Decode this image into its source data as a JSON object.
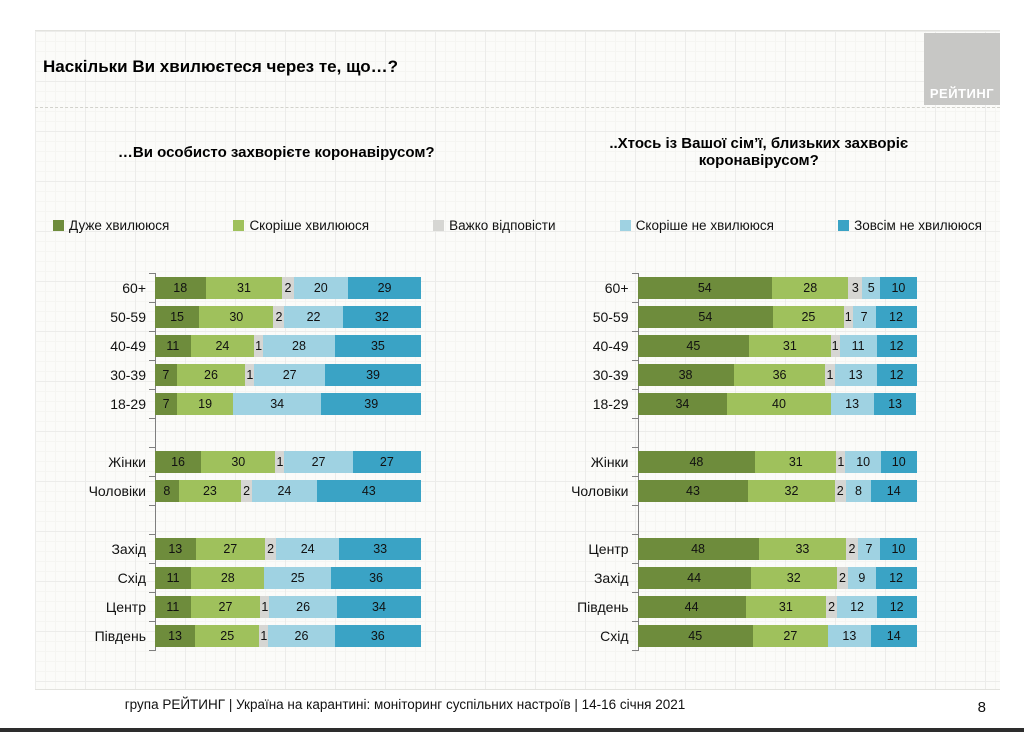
{
  "slide": {
    "title": "Наскільки Ви хвилюєтеся через те, що…?",
    "logo_text": "РЕЙТИНГ",
    "footer": "група РЕЙТИНГ | Україна на карантині: моніторинг суспільних настроїв | 14-16 січня 2021",
    "page_number": "8"
  },
  "legend": [
    {
      "label": "Дуже хвилююся",
      "color": "#6e8c3c"
    },
    {
      "label": "Скоріше хвилююся",
      "color": "#9fc15c"
    },
    {
      "label": "Важко відповісти",
      "color": "#d6d6d3"
    },
    {
      "label": "Скоріше не хвилююся",
      "color": "#9fd2e2"
    },
    {
      "label": "Зовсім не хвилююся",
      "color": "#3aa3c5"
    }
  ],
  "chart_data": [
    {
      "type": "bar",
      "stacked": true,
      "orientation": "horizontal",
      "title": "…Ви особисто захворієте коронавірусом?",
      "series_names": [
        "Дуже хвилююся",
        "Скоріше хвилююся",
        "Важко відповісти",
        "Скоріше не хвилююся",
        "Зовсім не хвилююся"
      ],
      "xlim": [
        0,
        100
      ],
      "units": "percent",
      "groups": [
        {
          "rows": [
            {
              "label": "60+",
              "values": [
                18,
                31,
                2,
                20,
                29
              ]
            },
            {
              "label": "50-59",
              "values": [
                15,
                30,
                2,
                22,
                32
              ]
            },
            {
              "label": "40-49",
              "values": [
                11,
                24,
                1,
                28,
                35
              ]
            },
            {
              "label": "30-39",
              "values": [
                7,
                26,
                1,
                27,
                39
              ]
            },
            {
              "label": "18-29",
              "values": [
                7,
                19,
                0,
                34,
                39
              ]
            }
          ]
        },
        {
          "rows": [
            {
              "label": "Жінки",
              "values": [
                16,
                30,
                1,
                27,
                27
              ]
            },
            {
              "label": "Чоловіки",
              "values": [
                8,
                23,
                2,
                24,
                43
              ]
            }
          ]
        },
        {
          "rows": [
            {
              "label": "Захід",
              "values": [
                13,
                27,
                2,
                24,
                33
              ]
            },
            {
              "label": "Схід",
              "values": [
                11,
                28,
                0,
                25,
                36
              ]
            },
            {
              "label": "Центр",
              "values": [
                11,
                27,
                1,
                26,
                34
              ]
            },
            {
              "label": "Південь",
              "values": [
                13,
                25,
                1,
                26,
                36
              ]
            }
          ]
        }
      ]
    },
    {
      "type": "bar",
      "stacked": true,
      "orientation": "horizontal",
      "title": "..Хтось із Вашої сім’ї, близьких захворіє коронавірусом?",
      "series_names": [
        "Дуже хвилююся",
        "Скоріше хвилююся",
        "Важко відповісти",
        "Скоріше не хвилююся",
        "Зовсім не хвилююся"
      ],
      "xlim": [
        0,
        100
      ],
      "units": "percent",
      "groups": [
        {
          "rows": [
            {
              "label": "60+",
              "values": [
                54,
                28,
                3,
                5,
                10
              ]
            },
            {
              "label": "50-59",
              "values": [
                54,
                25,
                1,
                7,
                12
              ]
            },
            {
              "label": "40-49",
              "values": [
                45,
                31,
                1,
                11,
                12
              ]
            },
            {
              "label": "30-39",
              "values": [
                38,
                36,
                1,
                13,
                12
              ]
            },
            {
              "label": "18-29",
              "values": [
                34,
                40,
                0,
                13,
                13
              ]
            }
          ]
        },
        {
          "rows": [
            {
              "label": "Жінки",
              "values": [
                48,
                31,
                1,
                10,
                10
              ]
            },
            {
              "label": "Чоловіки",
              "values": [
                43,
                32,
                2,
                8,
                14
              ]
            }
          ]
        },
        {
          "rows": [
            {
              "label": "Центр",
              "values": [
                48,
                33,
                2,
                7,
                10
              ]
            },
            {
              "label": "Захід",
              "values": [
                44,
                32,
                2,
                9,
                12
              ]
            },
            {
              "label": "Південь",
              "values": [
                44,
                31,
                2,
                12,
                12
              ]
            },
            {
              "label": "Схід",
              "values": [
                45,
                27,
                0,
                13,
                14
              ]
            }
          ]
        }
      ]
    }
  ]
}
